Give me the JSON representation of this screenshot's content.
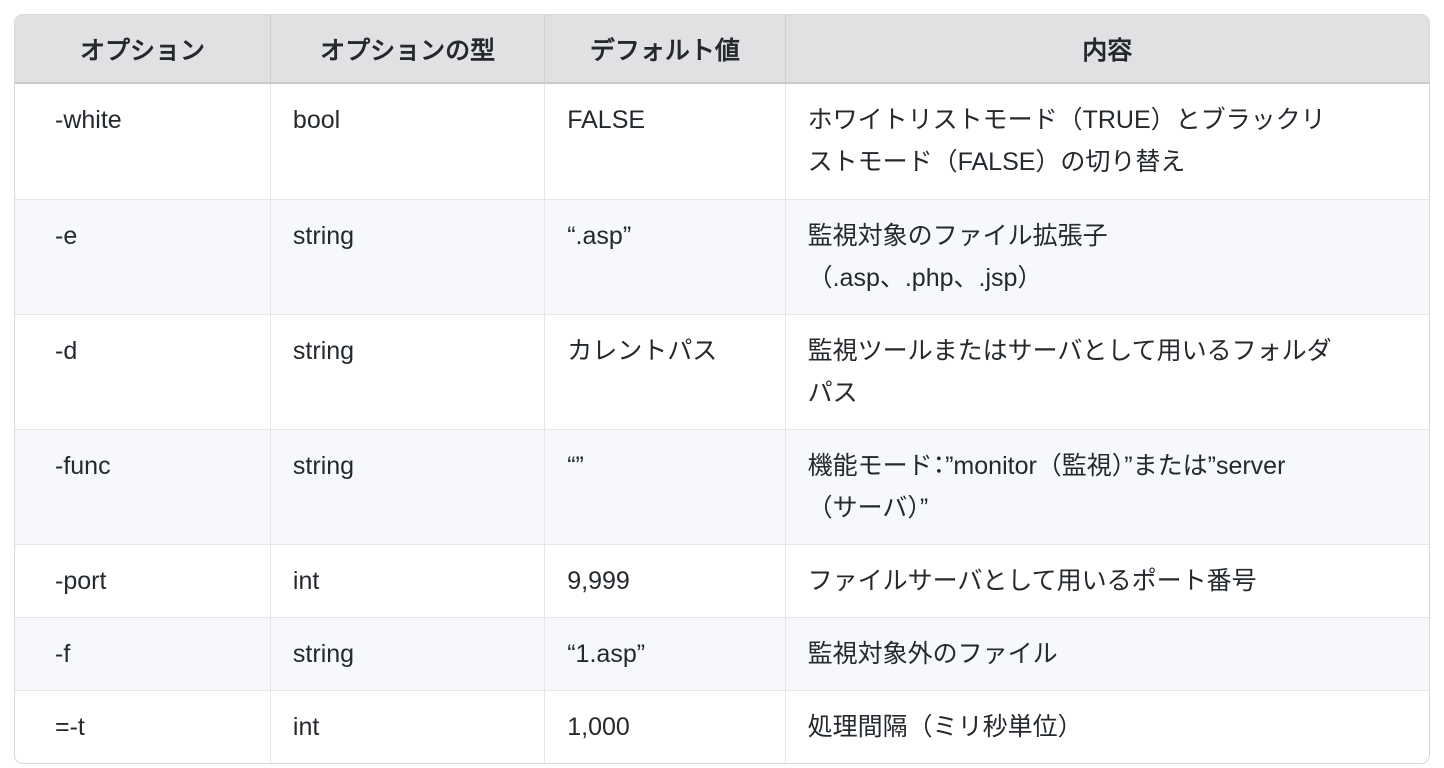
{
  "table": {
    "columns": {
      "option": "オプション",
      "type": "オプションの型",
      "default": "デフォルト値",
      "description": "内容"
    },
    "rows": [
      {
        "option": "-white",
        "type": "bool",
        "default": "FALSE",
        "description": "ホワイトリストモード（TRUE）とブラックリ\nストモード（FALSE）の切り替え"
      },
      {
        "option": "-e",
        "type": "string",
        "default": "“.asp”",
        "description": "監視対象のファイル拡張子\n（.asp、.php、.jsp）"
      },
      {
        "option": "-d",
        "type": "string",
        "default": "カレントパス",
        "description": "監視ツールまたはサーバとして用いるフォルダ\nパス"
      },
      {
        "option": "-func",
        "type": "string",
        "default": "“”",
        "description": "機能モード：”monitor（監視）”または”server\n（サーバ）”"
      },
      {
        "option": "-port",
        "type": "int",
        "default": "9,999",
        "description": "ファイルサーバとして用いるポート番号"
      },
      {
        "option": "-f",
        "type": "string",
        "default": "“1.asp”",
        "description": "監視対象外のファイル"
      },
      {
        "option": "=-t",
        "type": "int",
        "default": "1,000",
        "description": "処理間隔（ミリ秒単位）"
      }
    ]
  },
  "colors": {
    "header_bg": "#e1e1e3",
    "stripe_bg": "#f6f8fb",
    "border": "#d8d8da",
    "text": "#24292e"
  }
}
